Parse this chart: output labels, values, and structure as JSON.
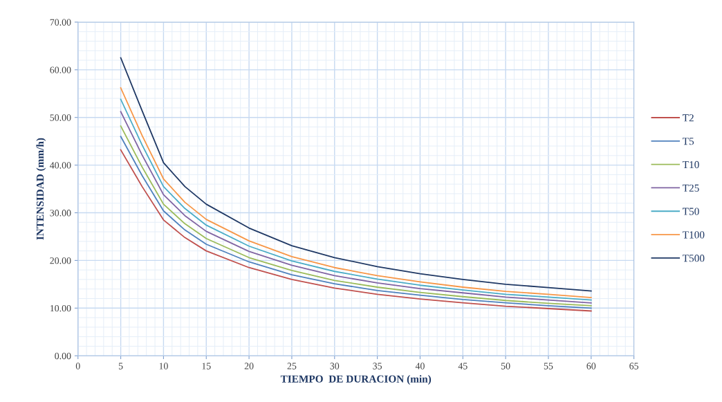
{
  "chart_data": {
    "type": "line",
    "xlabel": "TIEMPO  DE DURACION (min)",
    "ylabel": "INTENSIDAD (mm/h)",
    "x": [
      5,
      7.5,
      10,
      12.5,
      15,
      20,
      25,
      30,
      35,
      40,
      45,
      50,
      55,
      60
    ],
    "series": [
      {
        "name": "T2",
        "color": "#c0504d",
        "values": [
          43.2,
          35.5,
          28.5,
          24.8,
          22.0,
          18.5,
          16.0,
          14.2,
          12.9,
          11.9,
          11.1,
          10.4,
          9.9,
          9.4
        ]
      },
      {
        "name": "T5",
        "color": "#4f81bd",
        "values": [
          46.0,
          37.8,
          30.4,
          26.4,
          23.4,
          19.7,
          17.0,
          15.1,
          13.7,
          12.7,
          11.8,
          11.1,
          10.5,
          10.0
        ]
      },
      {
        "name": "T10",
        "color": "#9bbb59",
        "values": [
          48.2,
          39.6,
          31.8,
          27.7,
          24.6,
          20.6,
          17.9,
          15.8,
          14.4,
          13.3,
          12.4,
          11.6,
          11.0,
          10.5
        ]
      },
      {
        "name": "T25",
        "color": "#8064a2",
        "values": [
          51.2,
          42.1,
          33.8,
          29.4,
          26.1,
          21.9,
          19.0,
          16.8,
          15.3,
          14.1,
          13.2,
          12.3,
          11.7,
          11.1
        ]
      },
      {
        "name": "T50",
        "color": "#4bacc6",
        "values": [
          53.8,
          44.2,
          35.5,
          30.9,
          27.4,
          23.0,
          19.9,
          17.7,
          16.1,
          14.8,
          13.8,
          12.9,
          12.3,
          11.7
        ]
      },
      {
        "name": "T100",
        "color": "#f79646",
        "values": [
          56.2,
          46.2,
          37.1,
          32.2,
          28.6,
          24.1,
          20.8,
          18.5,
          16.8,
          15.5,
          14.4,
          13.5,
          12.9,
          12.2
        ]
      },
      {
        "name": "T500",
        "color": "#1f3864",
        "values": [
          62.5,
          51.4,
          40.5,
          35.5,
          31.8,
          26.8,
          23.1,
          20.6,
          18.7,
          17.2,
          16.0,
          15.0,
          14.3,
          13.6
        ]
      }
    ],
    "xlim": [
      0,
      65
    ],
    "xticks": [
      0,
      5,
      10,
      15,
      20,
      25,
      30,
      35,
      40,
      45,
      50,
      55,
      60,
      65
    ],
    "ylim": [
      0,
      70
    ],
    "yticks": [
      {
        "value": 0,
        "label": "0.00"
      },
      {
        "value": 10,
        "label": "10.00"
      },
      {
        "value": 20,
        "label": "20.00"
      },
      {
        "value": 30,
        "label": "30.00"
      },
      {
        "value": 40,
        "label": "40.00"
      },
      {
        "value": 50,
        "label": "50.00"
      },
      {
        "value": 60,
        "label": "60.00"
      },
      {
        "value": 70,
        "label": "70.00"
      }
    ],
    "grid": true,
    "legend": "right",
    "marker": "none",
    "line_style": "solid"
  }
}
